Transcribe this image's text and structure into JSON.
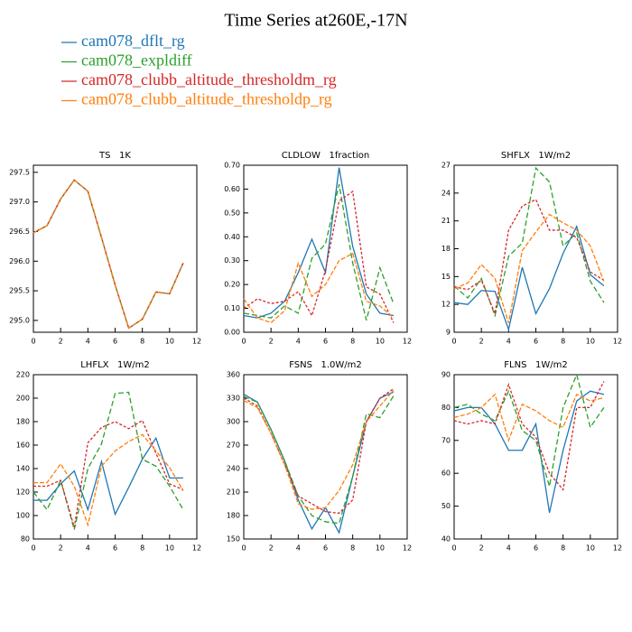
{
  "title": "Time Series at260E,-17N",
  "legend": [
    {
      "name": "cam078_dflt_rg",
      "color": "#1f77b4"
    },
    {
      "name": "cam078_expldiff",
      "color": "#2ca02c"
    },
    {
      "name": "cam078_clubb_altitude_thresholdm_rg",
      "color": "#d62728"
    },
    {
      "name": "cam078_clubb_altitude_thresholdp_rg",
      "color": "#ff7f0e"
    }
  ],
  "chart_data": [
    {
      "type": "line",
      "title": "TS   1K",
      "x": [
        0,
        1,
        2,
        3,
        4,
        5,
        6,
        7,
        8,
        9,
        10,
        11
      ],
      "xlim": [
        0,
        12
      ],
      "xticks": [
        0,
        2,
        4,
        6,
        8,
        10,
        12
      ],
      "ylim": [
        294.8,
        297.62
      ],
      "yticks": [
        {
          "value": 295,
          "label": "295.0"
        },
        {
          "value": 295.5,
          "label": "295.5"
        },
        {
          "value": 296,
          "label": "296.0"
        },
        {
          "value": 296.5,
          "label": "296.5"
        },
        {
          "value": 297,
          "label": "297.0"
        },
        {
          "value": 297.5,
          "label": "297.5"
        }
      ],
      "series": [
        {
          "values": [
            296.48,
            296.6,
            297.05,
            297.37,
            297.18,
            296.4,
            295.6,
            294.87,
            295.02,
            295.48,
            295.45,
            295.97
          ]
        },
        {
          "values": [
            296.48,
            296.6,
            297.05,
            297.37,
            297.18,
            296.4,
            295.6,
            294.87,
            295.02,
            295.48,
            295.45,
            295.97
          ]
        },
        {
          "values": [
            296.48,
            296.6,
            297.05,
            297.37,
            297.18,
            296.4,
            295.6,
            294.87,
            295.02,
            295.48,
            295.45,
            295.97
          ]
        },
        {
          "values": [
            296.48,
            296.6,
            297.05,
            297.37,
            297.18,
            296.4,
            295.6,
            294.87,
            295.02,
            295.48,
            295.45,
            295.97
          ]
        }
      ]
    },
    {
      "type": "line",
      "title": "CLDLOW   1fraction",
      "x": [
        0,
        1,
        2,
        3,
        4,
        5,
        6,
        7,
        8,
        9,
        10,
        11
      ],
      "xlim": [
        0,
        12
      ],
      "xticks": [
        0,
        2,
        4,
        6,
        8,
        10,
        12
      ],
      "ylim": [
        0,
        0.7
      ],
      "yticks": [
        {
          "value": 0,
          "label": "0.00"
        },
        {
          "value": 0.1,
          "label": "0.10"
        },
        {
          "value": 0.2,
          "label": "0.20"
        },
        {
          "value": 0.3,
          "label": "0.30"
        },
        {
          "value": 0.4,
          "label": "0.40"
        },
        {
          "value": 0.5,
          "label": "0.50"
        },
        {
          "value": 0.6,
          "label": "0.60"
        },
        {
          "value": 0.7,
          "label": "0.70"
        }
      ],
      "series": [
        {
          "values": [
            0.07,
            0.06,
            0.08,
            0.13,
            0.25,
            0.39,
            0.25,
            0.69,
            0.36,
            0.16,
            0.08,
            0.07
          ]
        },
        {
          "values": [
            0.08,
            0.07,
            0.06,
            0.11,
            0.08,
            0.31,
            0.37,
            0.62,
            0.29,
            0.05,
            0.27,
            0.12
          ]
        },
        {
          "values": [
            0.1,
            0.14,
            0.12,
            0.13,
            0.17,
            0.07,
            0.26,
            0.55,
            0.59,
            0.19,
            0.16,
            0.04
          ]
        },
        {
          "values": [
            0.14,
            0.06,
            0.04,
            0.09,
            0.29,
            0.15,
            0.2,
            0.3,
            0.33,
            0.13,
            0.11,
            0.06
          ]
        }
      ]
    },
    {
      "type": "line",
      "title": "SHFLX   1W/m2",
      "x": [
        0,
        1,
        2,
        3,
        4,
        5,
        6,
        7,
        8,
        9,
        10,
        11
      ],
      "xlim": [
        0,
        12
      ],
      "xticks": [
        0,
        2,
        4,
        6,
        8,
        10,
        12
      ],
      "ylim": [
        9,
        27
      ],
      "yticks": [
        9,
        12,
        15,
        18,
        21,
        24,
        27
      ],
      "series": [
        {
          "values": [
            12.2,
            12,
            13.5,
            13.4,
            9.3,
            16,
            11,
            13.7,
            17.5,
            20.4,
            15.2,
            14
          ]
        },
        {
          "values": [
            14,
            12.7,
            14.8,
            10.8,
            17.2,
            18.6,
            26.7,
            25.2,
            18.3,
            19.7,
            14.5,
            12.2
          ]
        },
        {
          "values": [
            13.9,
            13.6,
            14.6,
            11,
            20,
            22.6,
            23.3,
            20,
            20,
            19.2,
            15.5,
            14.6
          ]
        },
        {
          "values": [
            13.7,
            14.3,
            16.3,
            14.8,
            10,
            17.8,
            19.8,
            21.7,
            20.8,
            20,
            18.3,
            14.5
          ]
        }
      ]
    },
    {
      "type": "line",
      "title": "LHFLX   1W/m2",
      "x": [
        0,
        1,
        2,
        3,
        4,
        5,
        6,
        7,
        8,
        9,
        10,
        11
      ],
      "xlim": [
        0,
        12
      ],
      "xticks": [
        0,
        2,
        4,
        6,
        8,
        10,
        12
      ],
      "ylim": [
        80,
        220
      ],
      "yticks": [
        80,
        100,
        120,
        140,
        160,
        180,
        200,
        220
      ],
      "series": [
        {
          "values": [
            113,
            113,
            127,
            138,
            105,
            146,
            101,
            124,
            148,
            166,
            132,
            132
          ]
        },
        {
          "values": [
            120,
            105,
            130,
            88,
            140,
            161,
            204,
            205,
            148,
            142,
            125,
            105
          ]
        },
        {
          "values": [
            125,
            125,
            130,
            90,
            162,
            175,
            180,
            174,
            181,
            153,
            127,
            122
          ]
        },
        {
          "values": [
            128,
            128,
            144,
            125,
            92,
            142,
            155,
            163,
            169,
            155,
            141,
            121
          ]
        }
      ]
    },
    {
      "type": "line",
      "title": "FSNS   1.0W/m2",
      "x": [
        0,
        1,
        2,
        3,
        4,
        5,
        6,
        7,
        8,
        9,
        10,
        11
      ],
      "xlim": [
        0,
        12
      ],
      "xticks": [
        0,
        2,
        4,
        6,
        8,
        10,
        12
      ],
      "ylim": [
        150,
        360
      ],
      "yticks": [
        150,
        180,
        210,
        240,
        270,
        300,
        330,
        360
      ],
      "series": [
        {
          "values": [
            335,
            325,
            290,
            250,
            200,
            163,
            190,
            158,
            230,
            300,
            330,
            338
          ]
        },
        {
          "values": [
            332,
            325,
            290,
            250,
            205,
            180,
            172,
            170,
            230,
            310,
            305,
            333
          ]
        },
        {
          "values": [
            330,
            320,
            285,
            245,
            205,
            195,
            185,
            183,
            200,
            300,
            330,
            342
          ]
        },
        {
          "values": [
            327,
            318,
            285,
            245,
            195,
            188,
            190,
            212,
            245,
            300,
            320,
            340
          ]
        }
      ]
    },
    {
      "type": "line",
      "title": "FLNS   1W/m2",
      "x": [
        0,
        1,
        2,
        3,
        4,
        5,
        6,
        7,
        8,
        9,
        10,
        11
      ],
      "xlim": [
        0,
        12
      ],
      "xticks": [
        0,
        2,
        4,
        6,
        8,
        10,
        12
      ],
      "ylim": [
        40,
        90
      ],
      "yticks": [
        40,
        50,
        60,
        70,
        80,
        90
      ],
      "series": [
        {
          "values": [
            79,
            80,
            80,
            75,
            67,
            67,
            75,
            48,
            67,
            82,
            85,
            84
          ]
        },
        {
          "values": [
            80,
            81,
            78,
            76,
            85,
            73,
            70,
            56,
            80,
            90,
            74,
            80
          ]
        },
        {
          "values": [
            76,
            75,
            76,
            75,
            87,
            75,
            71,
            60,
            55,
            80,
            80,
            88
          ]
        },
        {
          "values": [
            77,
            78,
            80,
            84,
            70,
            81,
            79,
            76,
            74,
            84,
            82,
            83
          ]
        }
      ]
    }
  ]
}
